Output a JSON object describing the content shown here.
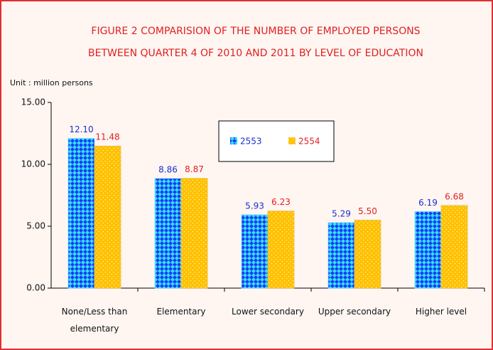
{
  "chart_data": {
    "type": "bar",
    "title": [
      "FIGURE 2  COMPARISION OF THE NUMBER OF EMPLOYED PERSONS",
      "BETWEEN QUARTER 4 OF 2010 AND 2011   BY LEVEL OF EDUCATION"
    ],
    "unit_label": "Unit : million persons",
    "categories": [
      "None/Less than elementary",
      "Elementary",
      "Lower secondary",
      "Upper secondary",
      "Higher level"
    ],
    "series": [
      {
        "name": "2553",
        "color": "#1a3cf0",
        "dot_color": "#33e0ff",
        "label_color": "#1a2fd0",
        "values": [
          12.1,
          8.86,
          5.93,
          5.29,
          6.19
        ],
        "value_labels": [
          "12.10",
          "8.86",
          "5.93",
          "5.29",
          "6.19"
        ]
      },
      {
        "name": "2554",
        "color": "#ffc000",
        "dot_color": "#fff2a0",
        "label_color": "#e02020",
        "values": [
          11.48,
          8.87,
          6.23,
          5.5,
          6.68
        ],
        "value_labels": [
          "11.48",
          "8.87",
          "6.23",
          "5.50",
          "6.68"
        ]
      }
    ],
    "ylim": [
      0,
      15
    ],
    "yticks": [
      {
        "value": 0,
        "label": "0.00"
      },
      {
        "value": 5,
        "label": "5.00"
      },
      {
        "value": 10,
        "label": "10.00"
      },
      {
        "value": 15,
        "label": "15.00"
      }
    ],
    "grid": false,
    "legend": "top-center"
  }
}
